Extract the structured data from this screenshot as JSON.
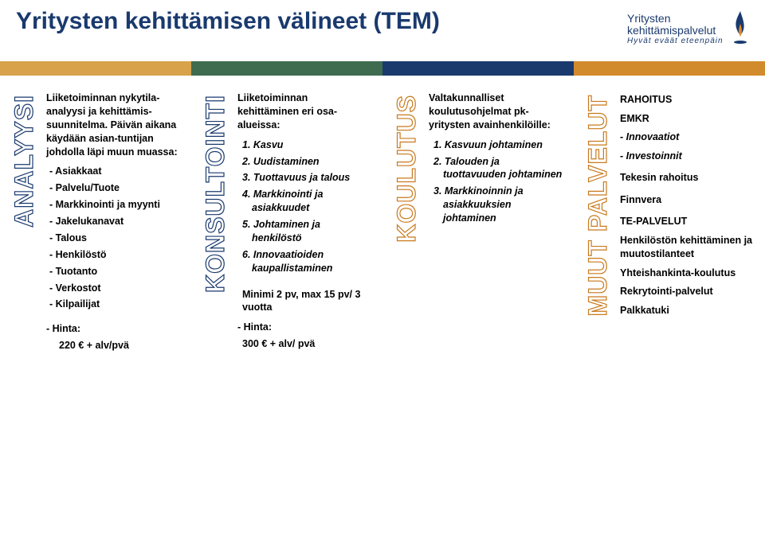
{
  "header": {
    "title": "Yritysten kehittämisen välineet (TEM)",
    "title_color": "#1a3a6e",
    "logo_line1": "Yritysten",
    "logo_line2": "kehittämispalvelut",
    "logo_tag": "Hyvät eväät eteenpäin",
    "logo_color": "#1a3a6e",
    "flame_blue": "#1a3a6e",
    "flame_orange": "#e08a2a"
  },
  "columns": [
    {
      "label": "ANALYYSI",
      "label_stroke": "#1a3a6e",
      "bar_color": "#d7a24a",
      "intro": "Liiketoiminnan nykytila-analyysi ja kehittämis-suunnitelma. Päivän aikana käydään asian-tuntijan johdolla läpi muun muassa:",
      "items": [
        "- Asiakkaat",
        "- Palvelu/Tuote",
        "- Markkinointi ja myynti",
        "- Jakelukanavat",
        "- Talous",
        "- Henkilöstö",
        "- Tuotanto",
        "- Verkostot",
        "- Kilpailijat"
      ],
      "footer1": "- Hinta:",
      "footer2": "220 € + alv/pvä"
    },
    {
      "label": "KONSULTOINTI",
      "label_stroke": "#1a3a6e",
      "bar_color": "#3f6b4f",
      "intro": "Liiketoiminnan kehittäminen eri osa-alueissa:",
      "numitems": [
        "1. Kasvu",
        "2. Uudistaminen",
        "3. Tuottavuus ja talous",
        "4. Markkinointi ja asiakkuudet",
        "5. Johtaminen ja henkilöstö",
        "6. Innovaatioiden kaupallistaminen"
      ],
      "footer_extra": "Minimi 2 pv, max 15 pv/ 3 vuotta",
      "footer1": "- Hinta:",
      "footer2": "300 € + alv/ pvä"
    },
    {
      "label": "KOULUTUS",
      "label_stroke": "#c97a1e",
      "bar_color": "#1a3a6e",
      "intro": "Valtakunnalliset koulutusohjelmat pk-yritysten avainhenkilöille:",
      "numitems": [
        "1. Kasvuun johtaminen",
        "2. Talouden ja tuottavuuden johtaminen",
        "3. Markkinoinnin ja asiakkuuksien johtaminen"
      ]
    },
    {
      "label": "MUUT PALVELUT",
      "label_stroke": "#c97a1e",
      "bar_color": "#d28b2c",
      "sections": [
        {
          "head": "RAHOITUS",
          "lines": [
            "EMKR",
            "- Innovaatiot",
            "- Investoinnit"
          ],
          "italic_lines": [
            2,
            3
          ]
        },
        {
          "head": "Tekesin rahoitus",
          "lines": []
        },
        {
          "head": "Finnvera",
          "lines": []
        },
        {
          "head": "TE-PALVELUT",
          "lines": [
            "Henkilöstön kehittäminen ja muutostilanteet",
            "Yhteishankinta-koulutus",
            "Rekrytointi-palvelut",
            "Palkkatuki"
          ]
        }
      ]
    }
  ]
}
